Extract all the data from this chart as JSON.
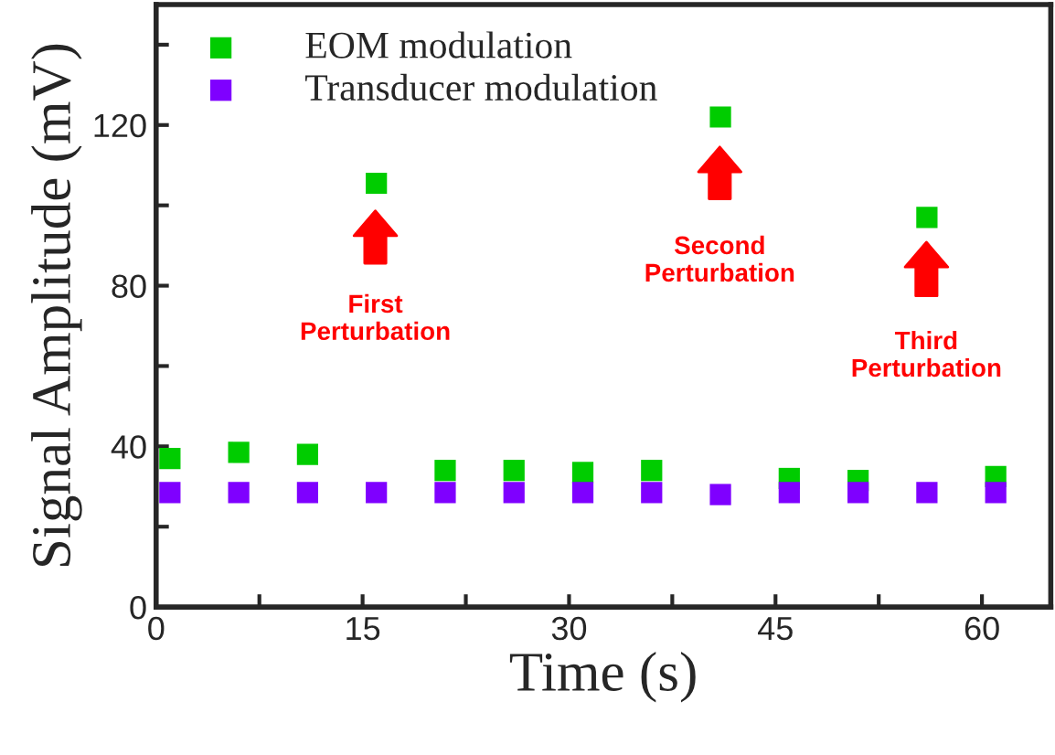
{
  "chart_data": {
    "type": "scatter",
    "xlabel": "Time (s)",
    "ylabel": "Signal Amplitude (mV)",
    "x": [
      1,
      6,
      11,
      16,
      21,
      26,
      31,
      36,
      41,
      46,
      51,
      56,
      61
    ],
    "series": [
      {
        "name": "EOM modulation",
        "color": "#00cc00",
        "values": [
          37,
          38.5,
          38,
          105.5,
          34,
          34,
          33.5,
          34,
          122,
          32,
          31.5,
          97,
          32.5
        ]
      },
      {
        "name": "Transducer modulation",
        "color": "#7f00ff",
        "values": [
          28.5,
          28.5,
          28.5,
          28.5,
          28.5,
          28.5,
          28.5,
          28.5,
          28,
          28.5,
          28.5,
          28.5,
          28.5
        ]
      }
    ],
    "marker": "square",
    "legend": "top left",
    "grid": false,
    "xlim": [
      0,
      65
    ],
    "xticks": [
      0,
      {
        "value": 7.5,
        "label": null
      },
      15,
      {
        "value": 22.5,
        "label": null
      },
      30,
      {
        "value": 37.5,
        "label": null
      },
      45,
      {
        "value": 52.5,
        "label": null
      },
      60
    ],
    "ylim": [
      0,
      150
    ],
    "yticks": [
      0,
      {
        "value": 20,
        "label": null
      },
      40,
      {
        "value": 60,
        "label": null
      },
      80,
      {
        "value": 100,
        "label": null
      },
      120,
      {
        "value": 140,
        "label": null
      }
    ],
    "annotations": [
      "First\nPerturbation",
      "Second\nPerturbation",
      "Third\nPerturbation"
    ]
  }
}
